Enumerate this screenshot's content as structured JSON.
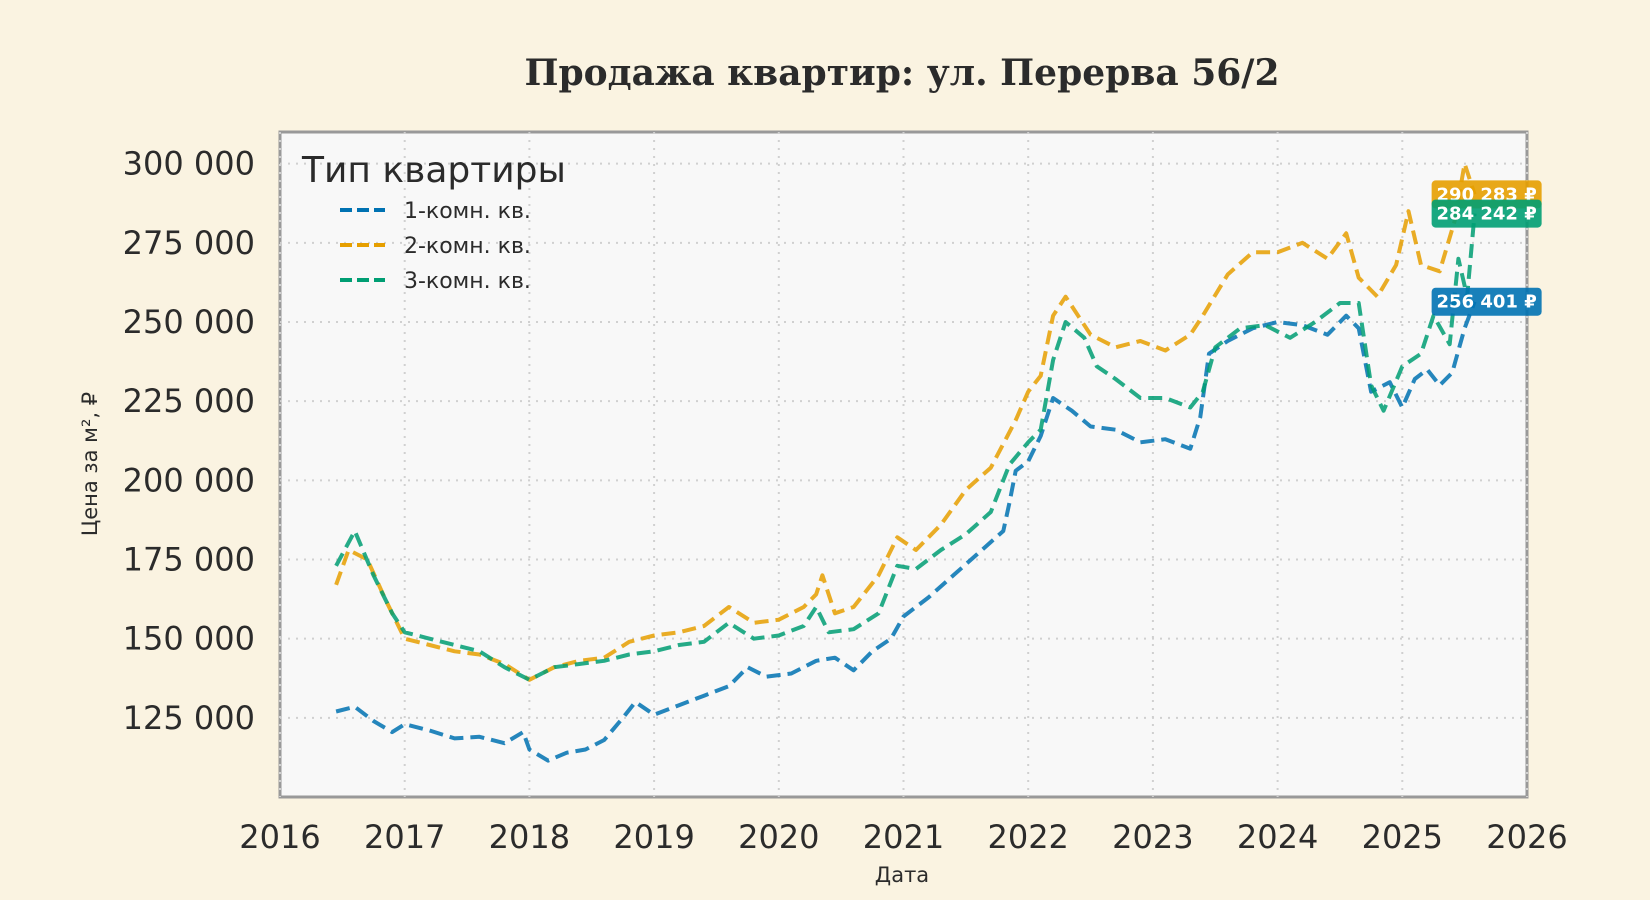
{
  "chart_data": {
    "type": "line",
    "title": "Продажа квартир: ул. Перерва 56/2",
    "xlabel": "Дата",
    "ylabel": "Цена за м², ₽",
    "xlim": [
      2016,
      2026
    ],
    "ylim": [
      100000,
      310000
    ],
    "x_ticks": [
      "2016",
      "2017",
      "2018",
      "2019",
      "2020",
      "2021",
      "2022",
      "2023",
      "2024",
      "2025",
      "2026"
    ],
    "y_ticks": [
      "125 000",
      "150 000",
      "175 000",
      "200 000",
      "225 000",
      "250 000",
      "275 000",
      "300 000"
    ],
    "grid": true,
    "legend": {
      "title": "Тип квартиры",
      "placement": "top-left"
    },
    "series": [
      {
        "name": "1-комн. кв.",
        "color": "#0072b2",
        "end_label": "256 401 ₽",
        "points": [
          [
            2016.45,
            127000
          ],
          [
            2016.6,
            128500
          ],
          [
            2016.75,
            124000
          ],
          [
            2016.9,
            120500
          ],
          [
            2017.0,
            123000
          ],
          [
            2017.2,
            121000
          ],
          [
            2017.4,
            118500
          ],
          [
            2017.6,
            119000
          ],
          [
            2017.8,
            117000
          ],
          [
            2017.95,
            120500
          ],
          [
            2018.0,
            115000
          ],
          [
            2018.15,
            111500
          ],
          [
            2018.3,
            114000
          ],
          [
            2018.45,
            115000
          ],
          [
            2018.6,
            118000
          ],
          [
            2018.75,
            125000
          ],
          [
            2018.85,
            130000
          ],
          [
            2019.0,
            126000
          ],
          [
            2019.2,
            129000
          ],
          [
            2019.4,
            132000
          ],
          [
            2019.6,
            135000
          ],
          [
            2019.75,
            141000
          ],
          [
            2019.9,
            138000
          ],
          [
            2020.1,
            139000
          ],
          [
            2020.3,
            143000
          ],
          [
            2020.45,
            144000
          ],
          [
            2020.6,
            140000
          ],
          [
            2020.75,
            146000
          ],
          [
            2020.9,
            150000
          ],
          [
            2021.0,
            157000
          ],
          [
            2021.2,
            163000
          ],
          [
            2021.4,
            170000
          ],
          [
            2021.6,
            177000
          ],
          [
            2021.8,
            184000
          ],
          [
            2021.85,
            193000
          ],
          [
            2021.9,
            203000
          ],
          [
            2022.0,
            206000
          ],
          [
            2022.1,
            214000
          ],
          [
            2022.2,
            226000
          ],
          [
            2022.35,
            222000
          ],
          [
            2022.5,
            217000
          ],
          [
            2022.7,
            216000
          ],
          [
            2022.9,
            212000
          ],
          [
            2023.1,
            213000
          ],
          [
            2023.3,
            210000
          ],
          [
            2023.38,
            220000
          ],
          [
            2023.45,
            240000
          ],
          [
            2023.6,
            244000
          ],
          [
            2023.8,
            248000
          ],
          [
            2024.0,
            250000
          ],
          [
            2024.2,
            249000
          ],
          [
            2024.4,
            246000
          ],
          [
            2024.55,
            252000
          ],
          [
            2024.65,
            248000
          ],
          [
            2024.75,
            228000
          ],
          [
            2024.9,
            231000
          ],
          [
            2025.0,
            223000
          ],
          [
            2025.1,
            232000
          ],
          [
            2025.2,
            235000
          ],
          [
            2025.3,
            230000
          ],
          [
            2025.4,
            234000
          ],
          [
            2025.5,
            248000
          ],
          [
            2025.58,
            256401
          ]
        ]
      },
      {
        "name": "2-комн. кв.",
        "color": "#e69f00",
        "end_label": "290 283 ₽",
        "points": [
          [
            2016.45,
            167000
          ],
          [
            2016.55,
            178000
          ],
          [
            2016.7,
            175000
          ],
          [
            2016.85,
            162000
          ],
          [
            2017.0,
            150000
          ],
          [
            2017.2,
            148000
          ],
          [
            2017.4,
            146000
          ],
          [
            2017.6,
            145000
          ],
          [
            2017.8,
            142000
          ],
          [
            2018.0,
            137000
          ],
          [
            2018.2,
            141000
          ],
          [
            2018.4,
            143000
          ],
          [
            2018.6,
            144000
          ],
          [
            2018.8,
            149000
          ],
          [
            2019.0,
            151000
          ],
          [
            2019.2,
            152000
          ],
          [
            2019.4,
            154000
          ],
          [
            2019.6,
            160000
          ],
          [
            2019.8,
            155000
          ],
          [
            2020.0,
            156000
          ],
          [
            2020.2,
            160000
          ],
          [
            2020.3,
            164000
          ],
          [
            2020.35,
            170000
          ],
          [
            2020.45,
            158000
          ],
          [
            2020.6,
            160000
          ],
          [
            2020.8,
            170000
          ],
          [
            2020.95,
            182000
          ],
          [
            2021.1,
            178000
          ],
          [
            2021.3,
            186000
          ],
          [
            2021.5,
            197000
          ],
          [
            2021.7,
            204000
          ],
          [
            2021.9,
            219000
          ],
          [
            2022.0,
            228000
          ],
          [
            2022.1,
            233000
          ],
          [
            2022.2,
            252000
          ],
          [
            2022.3,
            258000
          ],
          [
            2022.4,
            252000
          ],
          [
            2022.5,
            246000
          ],
          [
            2022.7,
            242000
          ],
          [
            2022.9,
            244000
          ],
          [
            2023.1,
            241000
          ],
          [
            2023.3,
            246000
          ],
          [
            2023.4,
            252000
          ],
          [
            2023.6,
            265000
          ],
          [
            2023.8,
            272000
          ],
          [
            2024.0,
            272000
          ],
          [
            2024.2,
            275000
          ],
          [
            2024.4,
            270000
          ],
          [
            2024.55,
            278000
          ],
          [
            2024.65,
            264000
          ],
          [
            2024.8,
            258000
          ],
          [
            2024.95,
            268000
          ],
          [
            2025.05,
            285000
          ],
          [
            2025.15,
            268000
          ],
          [
            2025.3,
            266000
          ],
          [
            2025.42,
            282000
          ],
          [
            2025.5,
            300000
          ],
          [
            2025.58,
            290283
          ]
        ]
      },
      {
        "name": "3-комн. кв.",
        "color": "#009e73",
        "end_label": "284 242 ₽",
        "points": [
          [
            2016.45,
            173000
          ],
          [
            2016.6,
            184000
          ],
          [
            2016.75,
            170000
          ],
          [
            2016.9,
            158000
          ],
          [
            2017.0,
            152000
          ],
          [
            2017.2,
            150000
          ],
          [
            2017.4,
            148000
          ],
          [
            2017.6,
            146000
          ],
          [
            2017.8,
            141000
          ],
          [
            2018.0,
            137000
          ],
          [
            2018.2,
            141000
          ],
          [
            2018.4,
            142000
          ],
          [
            2018.6,
            143000
          ],
          [
            2018.8,
            145000
          ],
          [
            2019.0,
            146000
          ],
          [
            2019.2,
            148000
          ],
          [
            2019.4,
            149000
          ],
          [
            2019.6,
            155000
          ],
          [
            2019.8,
            150000
          ],
          [
            2020.0,
            151000
          ],
          [
            2020.2,
            154000
          ],
          [
            2020.3,
            160000
          ],
          [
            2020.4,
            152000
          ],
          [
            2020.6,
            153000
          ],
          [
            2020.8,
            158000
          ],
          [
            2020.95,
            173000
          ],
          [
            2021.1,
            172000
          ],
          [
            2021.3,
            178000
          ],
          [
            2021.5,
            183000
          ],
          [
            2021.7,
            190000
          ],
          [
            2021.85,
            205000
          ],
          [
            2022.0,
            212000
          ],
          [
            2022.1,
            216000
          ],
          [
            2022.2,
            238000
          ],
          [
            2022.3,
            250000
          ],
          [
            2022.45,
            245000
          ],
          [
            2022.55,
            236000
          ],
          [
            2022.7,
            232000
          ],
          [
            2022.9,
            226000
          ],
          [
            2023.1,
            226000
          ],
          [
            2023.3,
            223000
          ],
          [
            2023.4,
            228000
          ],
          [
            2023.5,
            242000
          ],
          [
            2023.7,
            248000
          ],
          [
            2023.9,
            249000
          ],
          [
            2024.1,
            245000
          ],
          [
            2024.3,
            250000
          ],
          [
            2024.5,
            256000
          ],
          [
            2024.65,
            256000
          ],
          [
            2024.75,
            230000
          ],
          [
            2024.85,
            222000
          ],
          [
            2025.0,
            236000
          ],
          [
            2025.15,
            240000
          ],
          [
            2025.25,
            252000
          ],
          [
            2025.38,
            243000
          ],
          [
            2025.45,
            270000
          ],
          [
            2025.52,
            258000
          ],
          [
            2025.58,
            284242
          ]
        ]
      }
    ]
  }
}
